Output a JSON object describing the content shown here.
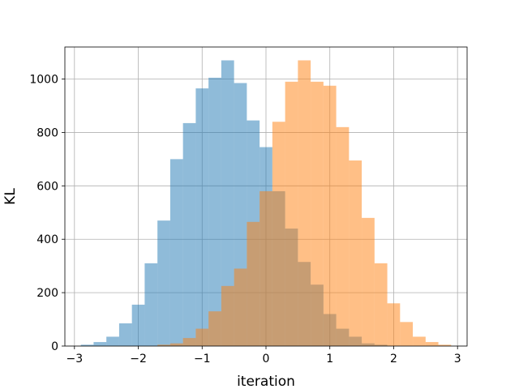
{
  "chart_data": {
    "type": "bar",
    "xlabel": "iteration",
    "ylabel": "KL",
    "xlim": [
      -3.15,
      3.15
    ],
    "ylim": [
      0,
      1120
    ],
    "grid": true,
    "x_ticks": [
      -3,
      -2,
      -1,
      0,
      1,
      2,
      3
    ],
    "x_tick_labels": [
      "−3",
      "−2",
      "−1",
      "0",
      "1",
      "2",
      "3"
    ],
    "y_ticks": [
      0,
      200,
      400,
      600,
      800,
      1000
    ],
    "y_tick_labels": [
      "0",
      "200",
      "400",
      "600",
      "800",
      "1000"
    ],
    "series": [
      {
        "color": "#1f77b4",
        "opacity": 0.5,
        "bins": [
          [
            -2.9,
            -2.7,
            5
          ],
          [
            -2.7,
            -2.5,
            15
          ],
          [
            -2.5,
            -2.3,
            35
          ],
          [
            -2.3,
            -2.1,
            85
          ],
          [
            -2.1,
            -1.9,
            155
          ],
          [
            -1.9,
            -1.7,
            310
          ],
          [
            -1.7,
            -1.5,
            470
          ],
          [
            -1.5,
            -1.3,
            700
          ],
          [
            -1.3,
            -1.1,
            835
          ],
          [
            -1.1,
            -0.9,
            965
          ],
          [
            -0.9,
            -0.7,
            1005
          ],
          [
            -0.7,
            -0.5,
            1070
          ],
          [
            -0.5,
            -0.3,
            985
          ],
          [
            -0.3,
            -0.1,
            845
          ],
          [
            -0.1,
            0.1,
            745
          ],
          [
            0.1,
            0.3,
            580
          ],
          [
            0.3,
            0.5,
            440
          ],
          [
            0.5,
            0.7,
            315
          ],
          [
            0.7,
            0.9,
            230
          ],
          [
            0.9,
            1.1,
            120
          ],
          [
            1.1,
            1.3,
            65
          ],
          [
            1.3,
            1.5,
            35
          ],
          [
            1.5,
            1.7,
            10
          ],
          [
            1.7,
            1.9,
            5
          ]
        ]
      },
      {
        "color": "#ff7f0e",
        "opacity": 0.5,
        "bins": [
          [
            -1.7,
            -1.5,
            5
          ],
          [
            -1.5,
            -1.3,
            10
          ],
          [
            -1.3,
            -1.1,
            30
          ],
          [
            -1.1,
            -0.9,
            65
          ],
          [
            -0.9,
            -0.7,
            130
          ],
          [
            -0.7,
            -0.5,
            225
          ],
          [
            -0.5,
            -0.3,
            290
          ],
          [
            -0.3,
            -0.1,
            465
          ],
          [
            -0.1,
            0.1,
            580
          ],
          [
            0.1,
            0.3,
            840
          ],
          [
            0.3,
            0.5,
            990
          ],
          [
            0.5,
            0.7,
            1070
          ],
          [
            0.7,
            0.9,
            990
          ],
          [
            0.9,
            1.1,
            975
          ],
          [
            1.1,
            1.3,
            820
          ],
          [
            1.3,
            1.5,
            695
          ],
          [
            1.5,
            1.7,
            480
          ],
          [
            1.7,
            1.9,
            310
          ],
          [
            1.9,
            2.1,
            160
          ],
          [
            2.1,
            2.3,
            90
          ],
          [
            2.3,
            2.5,
            35
          ],
          [
            2.5,
            2.7,
            15
          ],
          [
            2.7,
            2.9,
            5
          ]
        ]
      }
    ]
  }
}
